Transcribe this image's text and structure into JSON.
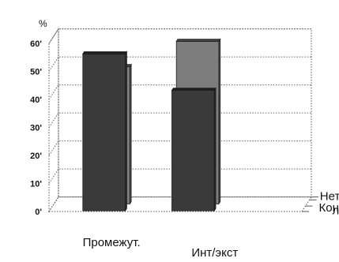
{
  "chart_data": {
    "type": "bar",
    "view": "3d",
    "title": "",
    "xlabel": "",
    "ylabel": "%",
    "ylim": [
      0,
      60
    ],
    "yticks": [
      0,
      10,
      20,
      30,
      40,
      50,
      60
    ],
    "ytick_labels": [
      "0'",
      "10'",
      "20'",
      "30'",
      "40'",
      "50'",
      "60'"
    ],
    "categories": [
      "Промежут.",
      "Инт/экст"
    ],
    "series": [
      {
        "name": "Конфликт",
        "values": [
          56,
          43
        ],
        "color": "#3a3a3a"
      },
      {
        "name": "Нет конф-ликта",
        "name_lines": [
          "Нет конф-",
          "ликта"
        ],
        "values": [
          49,
          58
        ],
        "color": "#7d7d7d"
      }
    ],
    "grid": true
  }
}
